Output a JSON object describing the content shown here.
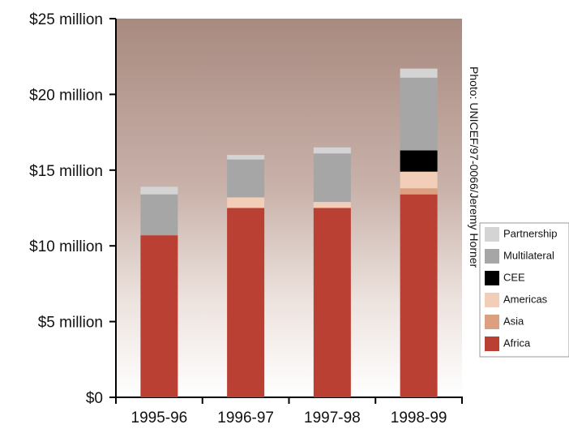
{
  "chart_data": {
    "type": "stacked_bar",
    "annotation": "Photo: UNICEF/97-0066/Jeremy Horner",
    "categories": [
      "1995-96",
      "1996-97",
      "1997-98",
      "1998-99"
    ],
    "series": [
      {
        "name": "Africa",
        "color": "#b94032",
        "values": [
          10.7,
          12.5,
          12.5,
          13.4
        ]
      },
      {
        "name": "Asia",
        "color": "#dca080",
        "values": [
          0,
          0,
          0,
          0.4
        ]
      },
      {
        "name": "Americas",
        "color": "#f2cdb8",
        "values": [
          0,
          0.7,
          0.4,
          1.1
        ]
      },
      {
        "name": "CEE",
        "color": "#000000",
        "values": [
          0,
          0,
          0,
          1.4
        ]
      },
      {
        "name": "Multilateral",
        "color": "#a6a6a6",
        "values": [
          2.7,
          2.5,
          3.2,
          4.8
        ]
      },
      {
        "name": "Partnership",
        "color": "#d4d4d4",
        "values": [
          0.5,
          0.3,
          0.4,
          0.6
        ]
      }
    ],
    "ylim": [
      0,
      25
    ],
    "yticks": [
      {
        "value": 0,
        "label": "$0"
      },
      {
        "value": 5,
        "label": "$5 million"
      },
      {
        "value": 10,
        "label": "$10 million"
      },
      {
        "value": 15,
        "label": "$15 million"
      },
      {
        "value": 20,
        "label": "$20 million"
      },
      {
        "value": 25,
        "label": "$25 million"
      }
    ]
  }
}
